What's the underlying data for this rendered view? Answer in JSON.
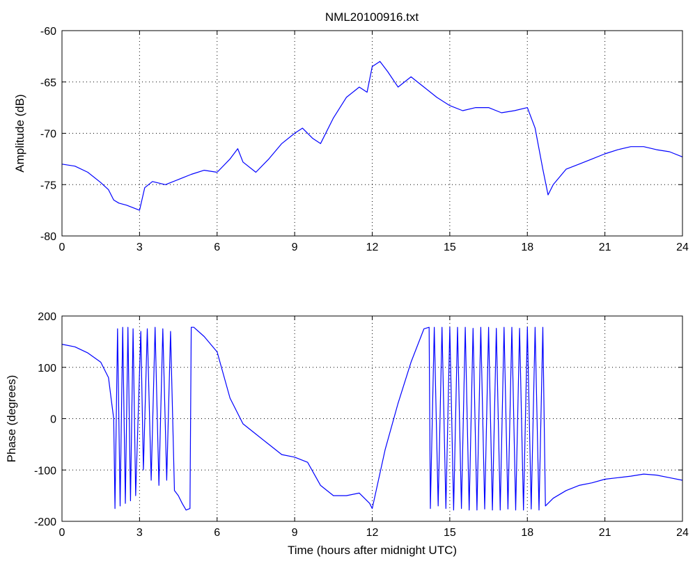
{
  "figure": {
    "title": "NML20100916.txt"
  },
  "chart_data": [
    {
      "type": "line",
      "title": "NML20100916.txt",
      "xlabel": "",
      "ylabel": "Amplitude (dB)",
      "xlim": [
        0,
        24
      ],
      "ylim": [
        -80,
        -60
      ],
      "xticks": [
        0,
        3,
        6,
        9,
        12,
        15,
        18,
        21,
        24
      ],
      "yticks": [
        -80,
        -75,
        -70,
        -65,
        -60
      ],
      "grid": true,
      "line_color": "#0000ff",
      "series": [
        {
          "x": [
            0,
            0.5,
            1.0,
            1.5,
            1.8,
            2.0,
            2.2,
            2.5,
            3.0,
            3.2,
            3.5,
            4.0,
            4.5,
            5.0,
            5.5,
            6.0,
            6.5,
            6.8,
            7.0,
            7.5,
            8.0,
            8.5,
            9.0,
            9.3,
            9.7,
            10.0,
            10.5,
            11.0,
            11.5,
            11.8,
            12.0,
            12.3,
            12.6,
            13.0,
            13.5,
            14.0,
            14.5,
            15.0,
            15.5,
            16.0,
            16.5,
            17.0,
            17.5,
            18.0,
            18.3,
            18.6,
            18.8,
            19.0,
            19.5,
            20.0,
            20.5,
            21.0,
            21.5,
            22.0,
            22.5,
            23.0,
            23.5,
            24.0
          ],
          "y": [
            -73.0,
            -73.2,
            -73.8,
            -74.8,
            -75.5,
            -76.5,
            -76.8,
            -77.0,
            -77.5,
            -75.3,
            -74.7,
            -75.0,
            -74.5,
            -74.0,
            -73.6,
            -73.8,
            -72.5,
            -71.5,
            -72.8,
            -73.8,
            -72.5,
            -71.0,
            -70.0,
            -69.5,
            -70.5,
            -71.0,
            -68.5,
            -66.5,
            -65.5,
            -66.0,
            -63.5,
            -63.0,
            -64.0,
            -65.5,
            -64.5,
            -65.5,
            -66.5,
            -67.3,
            -67.8,
            -67.5,
            -67.5,
            -68.0,
            -67.8,
            -67.5,
            -69.5,
            -73.5,
            -76.0,
            -75.0,
            -73.5,
            -73.0,
            -72.5,
            -72.0,
            -71.6,
            -71.3,
            -71.3,
            -71.6,
            -71.8,
            -72.3
          ]
        }
      ]
    },
    {
      "type": "line",
      "title": "",
      "xlabel": "Time (hours after midnight UTC)",
      "ylabel": "Phase (degrees)",
      "xlim": [
        0,
        24
      ],
      "ylim": [
        -200,
        200
      ],
      "xticks": [
        0,
        3,
        6,
        9,
        12,
        15,
        18,
        21,
        24
      ],
      "yticks": [
        -200,
        -100,
        0,
        100,
        200
      ],
      "grid": true,
      "line_color": "#0000ff",
      "series": [
        {
          "x": [
            0,
            0.5,
            1.0,
            1.5,
            1.8,
            1.9,
            2.0,
            2.05,
            2.15,
            2.25,
            2.35,
            2.45,
            2.55,
            2.65,
            2.75,
            2.85,
            3.05,
            3.15,
            3.3,
            3.45,
            3.6,
            3.75,
            3.9,
            4.05,
            4.2,
            4.35,
            4.5,
            4.65,
            4.8,
            4.95,
            5.0,
            5.1,
            5.5,
            6.0,
            6.5,
            7.0,
            7.5,
            8.0,
            8.5,
            9.0,
            9.5,
            10.0,
            10.5,
            11.0,
            11.5,
            11.9,
            12.0,
            12.5,
            13.0,
            13.5,
            14.0,
            14.2,
            14.25,
            14.4,
            14.55,
            14.7,
            14.85,
            15.0,
            15.15,
            15.3,
            15.45,
            15.6,
            15.75,
            15.9,
            16.05,
            16.2,
            16.35,
            16.5,
            16.65,
            16.8,
            16.95,
            17.1,
            17.25,
            17.4,
            17.55,
            17.7,
            17.85,
            18.0,
            18.15,
            18.3,
            18.45,
            18.6,
            18.7,
            19.0,
            19.5,
            20.0,
            20.5,
            21.0,
            21.5,
            22.0,
            22.5,
            23.0,
            23.5,
            24.0
          ],
          "y": [
            145,
            140,
            128,
            110,
            80,
            40,
            0,
            -175,
            175,
            -170,
            178,
            -165,
            178,
            -160,
            175,
            -150,
            170,
            -100,
            175,
            -120,
            178,
            -130,
            175,
            -120,
            170,
            -140,
            -150,
            -165,
            -178,
            -175,
            178,
            178,
            160,
            130,
            40,
            -10,
            -30,
            -50,
            -70,
            -75,
            -85,
            -130,
            -150,
            -150,
            -145,
            -165,
            -175,
            -60,
            30,
            110,
            175,
            178,
            -175,
            178,
            -170,
            178,
            -175,
            178,
            -178,
            178,
            -175,
            178,
            -178,
            176,
            -178,
            178,
            -176,
            178,
            -178,
            176,
            -178,
            178,
            -176,
            178,
            -178,
            176,
            -178,
            178,
            -176,
            178,
            -178,
            178,
            -170,
            -155,
            -140,
            -130,
            -125,
            -118,
            -115,
            -112,
            -108,
            -110,
            -115,
            -120
          ]
        }
      ]
    }
  ]
}
